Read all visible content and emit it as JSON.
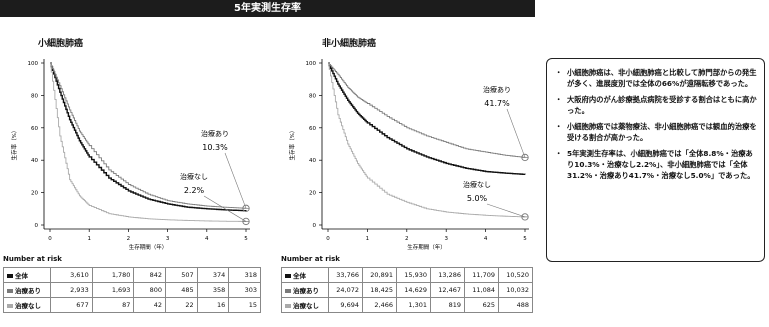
{
  "header": {
    "title": "5年実測生存率"
  },
  "risk_label": "Number at risk",
  "panels": [
    {
      "title": "小細胞肺癌",
      "risk_table": [
        {
          "label": "全体",
          "values": [
            "3,610",
            "1,780",
            "842",
            "507",
            "374",
            "318"
          ]
        },
        {
          "label": "治療あり",
          "values": [
            "2,933",
            "1,693",
            "800",
            "485",
            "358",
            "303"
          ]
        },
        {
          "label": "治療なし",
          "values": [
            "677",
            "87",
            "42",
            "22",
            "16",
            "15"
          ]
        }
      ]
    },
    {
      "title": "非小細胞肺癌",
      "risk_table": [
        {
          "label": "全体",
          "values": [
            "33,766",
            "20,891",
            "15,930",
            "13,286",
            "11,709",
            "10,520"
          ]
        },
        {
          "label": "治療あり",
          "values": [
            "24,072",
            "18,425",
            "14,629",
            "12,467",
            "11,084",
            "10,032"
          ]
        },
        {
          "label": "治療なし",
          "values": [
            "9,694",
            "2,466",
            "1,301",
            "819",
            "625",
            "488"
          ]
        }
      ]
    }
  ],
  "legend_colors": {
    "overall": "#111111",
    "treated": "#7a7a7a",
    "untreated": "#aaaaaa"
  },
  "notes": [
    "小細胞肺癌は、非小細胞肺癌と比較して肺門部からの発生が多く、進展度別では全体の66%が遠隔転移であった。",
    "大阪府内のがん診療拠点病院を受診する割合はともに高かった。",
    "小細胞肺癌では薬物療法、非小細胞肺癌では観血的治療を受ける割合が高かった。",
    "5年実測生存率は、小細胞肺癌では「全体8.8%・治療あり10.3%・治療なし2.2%」、非小細胞肺癌では「全体31.2%・治療あり41.7%・治療なし5.0%」であった。"
  ],
  "chart_data": [
    {
      "type": "line",
      "title": "小細胞肺癌",
      "xlabel": "生存期間（年）",
      "ylabel": "生存率（%）",
      "xlim": [
        0,
        5
      ],
      "ylim": [
        0,
        100
      ],
      "xticks": [
        "0",
        "1",
        "2",
        "3",
        "4",
        "5"
      ],
      "yticks": [
        "0",
        "20",
        "40",
        "60",
        "80",
        "100"
      ],
      "x": [
        0,
        0.25,
        0.5,
        0.75,
        1,
        1.5,
        2,
        2.5,
        3,
        3.5,
        4,
        4.5,
        5
      ],
      "series": [
        {
          "name": "全体",
          "color_key": "overall",
          "values": [
            100,
            82,
            65,
            52,
            42,
            29,
            21,
            16,
            13,
            11,
            10,
            9.3,
            8.8
          ]
        },
        {
          "name": "治療あり",
          "color_key": "treated",
          "values": [
            100,
            86,
            71,
            58,
            49,
            34,
            25,
            19,
            15,
            13,
            11.7,
            10.9,
            10.3
          ]
        },
        {
          "name": "治療なし",
          "color_key": "untreated",
          "values": [
            100,
            55,
            28,
            18,
            12,
            7,
            5,
            3.8,
            3.2,
            2.8,
            2.5,
            2.3,
            2.2
          ]
        }
      ],
      "annotations": [
        {
          "text": "治療あり",
          "value": "10.3%"
        },
        {
          "text": "治療なし",
          "value": "2.2%"
        }
      ]
    },
    {
      "type": "line",
      "title": "非小細胞肺癌",
      "xlabel": "生存期間（年）",
      "ylabel": "生存率（%）",
      "xlim": [
        0,
        5
      ],
      "ylim": [
        0,
        100
      ],
      "xticks": [
        "0",
        "1",
        "2",
        "3",
        "4",
        "5"
      ],
      "yticks": [
        "0",
        "20",
        "40",
        "60",
        "80",
        "100"
      ],
      "x": [
        0,
        0.25,
        0.5,
        0.75,
        1,
        1.5,
        2,
        2.5,
        3,
        3.5,
        4,
        4.5,
        5
      ],
      "series": [
        {
          "name": "全体",
          "color_key": "overall",
          "values": [
            100,
            87,
            77,
            69,
            63,
            54,
            47,
            42,
            38,
            35,
            33,
            32,
            31.2
          ]
        },
        {
          "name": "治療あり",
          "color_key": "treated",
          "values": [
            100,
            93,
            85,
            79,
            75,
            67,
            60,
            55,
            51,
            47,
            45,
            43,
            41.7
          ]
        },
        {
          "name": "治療なし",
          "color_key": "untreated",
          "values": [
            100,
            68,
            50,
            38,
            29,
            19,
            14,
            10,
            8,
            6.8,
            6,
            5.4,
            5.0
          ]
        }
      ],
      "annotations": [
        {
          "text": "治療あり",
          "value": "41.7%"
        },
        {
          "text": "治療なし",
          "value": "5.0%"
        }
      ]
    }
  ]
}
